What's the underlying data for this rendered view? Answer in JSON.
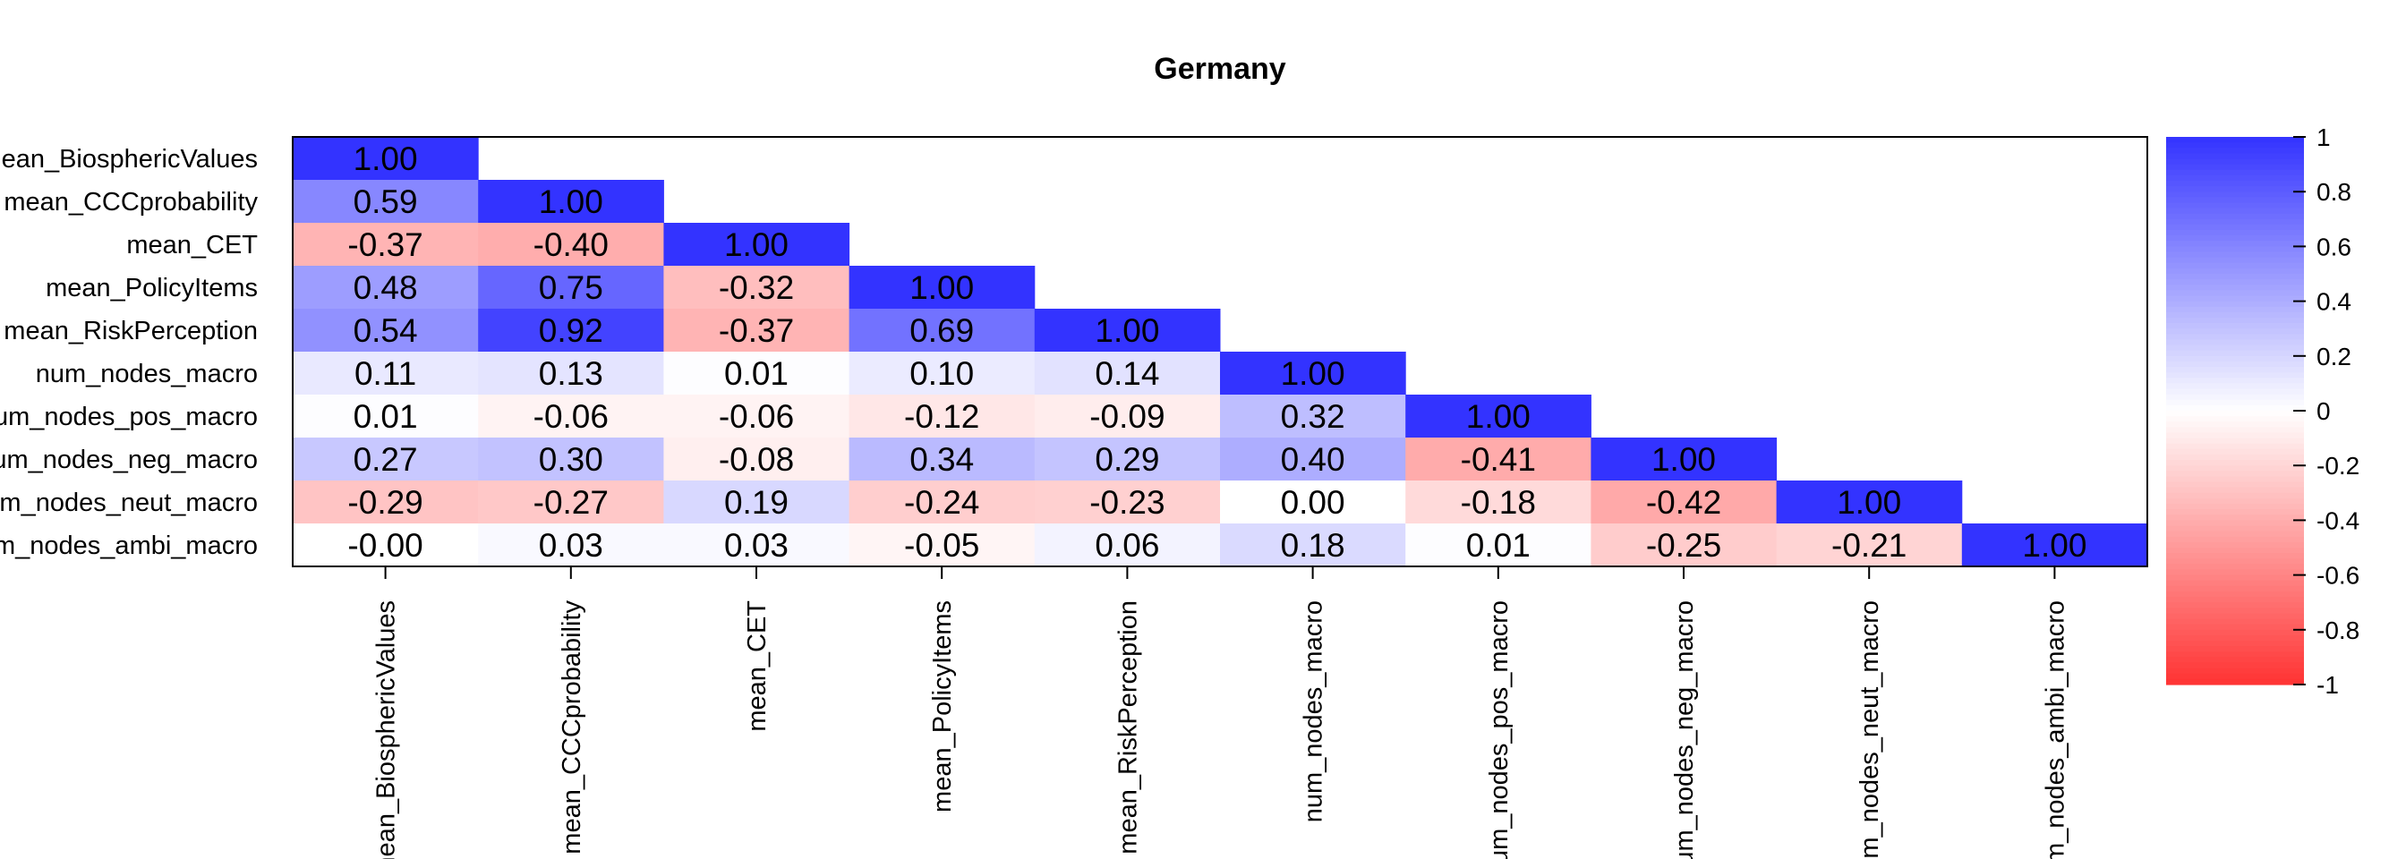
{
  "chart_data": {
    "type": "heatmap",
    "title": "Germany",
    "row_labels": [
      "mean_BiosphericValues",
      "mean_CCCprobability",
      "mean_CET",
      "mean_PolicyItems",
      "mean_RiskPerception",
      "num_nodes_macro",
      "num_nodes_pos_macro",
      "num_nodes_neg_macro",
      "num_nodes_neut_macro",
      "num_nodes_ambi_macro"
    ],
    "column_labels": [
      "mean_BiosphericValues",
      "mean_CCCprobability",
      "mean_CET",
      "mean_PolicyItems",
      "mean_RiskPerception",
      "num_nodes_macro",
      "num_nodes_pos_macro",
      "num_nodes_neg_macro",
      "num_nodes_neut_macro",
      "num_nodes_ambi_macro"
    ],
    "matrix_shape": "lower-triangular",
    "cell_labels": [
      [
        "1.00"
      ],
      [
        "0.59",
        "1.00"
      ],
      [
        "-0.37",
        "-0.40",
        "1.00"
      ],
      [
        "0.48",
        "0.75",
        "-0.32",
        "1.00"
      ],
      [
        "0.54",
        "0.92",
        "-0.37",
        "0.69",
        "1.00"
      ],
      [
        "0.11",
        "0.13",
        "0.01",
        "0.10",
        "0.14",
        "1.00"
      ],
      [
        "0.01",
        "-0.06",
        "-0.06",
        "-0.12",
        "-0.09",
        "0.32",
        "1.00"
      ],
      [
        "0.27",
        "0.30",
        "-0.08",
        "0.34",
        "0.29",
        "0.40",
        "-0.41",
        "1.00"
      ],
      [
        "-0.29",
        "-0.27",
        "0.19",
        "-0.24",
        "-0.23",
        "0.00",
        "-0.18",
        "-0.42",
        "1.00"
      ],
      [
        "-0.00",
        "0.03",
        "0.03",
        "-0.05",
        "0.06",
        "0.18",
        "0.01",
        "-0.25",
        "-0.21",
        "1.00"
      ]
    ],
    "colorbar": {
      "range": [
        -1,
        1
      ],
      "ticks": [
        "1",
        "0.8",
        "0.6",
        "0.4",
        "0.2",
        "0",
        "-0.2",
        "-0.4",
        "-0.6",
        "-0.8",
        "-1"
      ],
      "position": "right",
      "colors": {
        "negative": "#FF3333",
        "zero": "#FFFFFF",
        "positive": "#3333FF"
      }
    }
  }
}
